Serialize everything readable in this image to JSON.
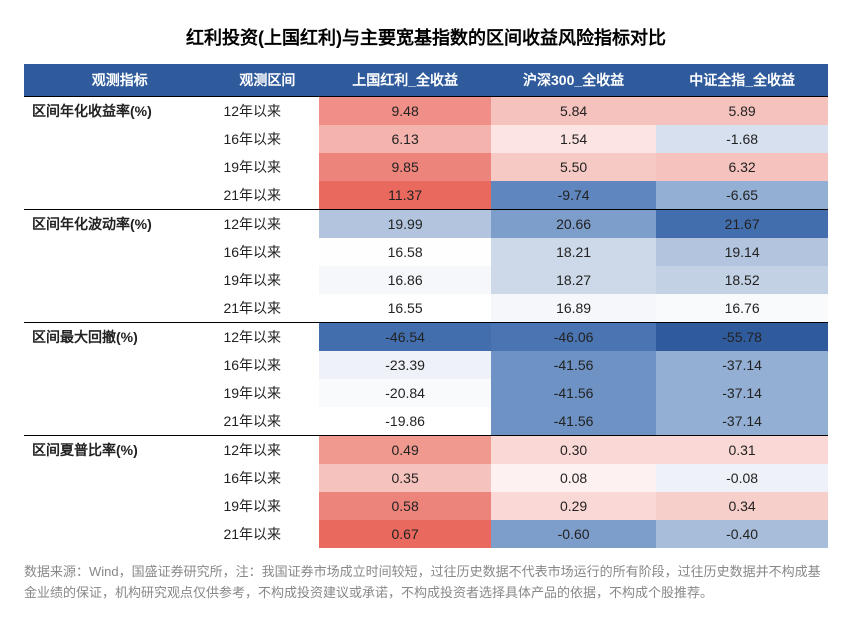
{
  "title": "红利投资(上国红利)与主要宽基指数的区间收益风险指标对比",
  "columns": [
    "观测指标",
    "观测区间",
    "上国红利_全收益",
    "沪深300_全收益",
    "中证全指_全收益"
  ],
  "periods": [
    "12年以来",
    "16年以来",
    "19年以来",
    "21年以来"
  ],
  "metrics": [
    {
      "name": "区间年化收益率(%)",
      "rows": [
        {
          "v": [
            "9.48",
            "5.84",
            "5.89"
          ],
          "bg": [
            "#ef8f87",
            "#f6c2bd",
            "#f6c2bd"
          ]
        },
        {
          "v": [
            "6.13",
            "1.54",
            "-1.68"
          ],
          "bg": [
            "#f4b3ad",
            "#fbe4e2",
            "#d6e0ef"
          ]
        },
        {
          "v": [
            "9.85",
            "5.50",
            "6.32"
          ],
          "bg": [
            "#ed847b",
            "#f7c9c4",
            "#f6c2bd"
          ]
        },
        {
          "v": [
            "11.37",
            "-9.74",
            "-6.65"
          ],
          "bg": [
            "#e9695e",
            "#5f86be",
            "#94afd4"
          ]
        }
      ]
    },
    {
      "name": "区间年化波动率(%)",
      "rows": [
        {
          "v": [
            "19.99",
            "20.66",
            "21.67"
          ],
          "bg": [
            "#b2c4de",
            "#7d9dcb",
            "#426ead"
          ]
        },
        {
          "v": [
            "16.58",
            "18.21",
            "19.14"
          ],
          "bg": [
            "#fefefe",
            "#cdd9e9",
            "#b2c4de"
          ]
        },
        {
          "v": [
            "16.86",
            "18.27",
            "18.52"
          ],
          "bg": [
            "#f5f7fb",
            "#cdd9e9",
            "#c3d1e5"
          ]
        },
        {
          "v": [
            "16.55",
            "16.89",
            "16.76"
          ],
          "bg": [
            "#ffffff",
            "#f5f7fb",
            "#f9fafc"
          ]
        }
      ]
    },
    {
      "name": "区间最大回撤(%)",
      "rows": [
        {
          "v": [
            "-46.54",
            "-46.06",
            "-55.78"
          ],
          "bg": [
            "#426ead",
            "#4a75b2",
            "#2f5b9c"
          ]
        },
        {
          "v": [
            "-23.39",
            "-41.56",
            "-37.14"
          ],
          "bg": [
            "#eef2f8",
            "#6e92c4",
            "#94afd4"
          ]
        },
        {
          "v": [
            "-20.84",
            "-41.56",
            "-37.14"
          ],
          "bg": [
            "#f9fafc",
            "#6e92c4",
            "#94afd4"
          ]
        },
        {
          "v": [
            "-19.86",
            "-41.56",
            "-37.14"
          ],
          "bg": [
            "#ffffff",
            "#6e92c4",
            "#94afd4"
          ]
        }
      ]
    },
    {
      "name": "区间夏普比率(%)",
      "rows": [
        {
          "v": [
            "0.49",
            "0.30",
            "0.31"
          ],
          "bg": [
            "#f0998f",
            "#fad8d5",
            "#fad8d5"
          ]
        },
        {
          "v": [
            "0.35",
            "0.08",
            "-0.08"
          ],
          "bg": [
            "#f6c2bd",
            "#fdf2f1",
            "#eef2f8"
          ]
        },
        {
          "v": [
            "0.58",
            "0.29",
            "0.34"
          ],
          "bg": [
            "#ed847b",
            "#fad8d5",
            "#f7cfca"
          ]
        },
        {
          "v": [
            "0.67",
            "-0.60",
            "-0.40"
          ],
          "bg": [
            "#e9695e",
            "#7d9dcb",
            "#a8bdda"
          ]
        }
      ]
    }
  ],
  "footnote": "数据来源：Wind，国盛证券研究所，注：我国证券市场成立时间较短，过往历史数据不代表市场运行的所有阶段，过往历史数据并不构成基金业绩的保证，机构研究观点仅供参考，不构成投资建议或承诺，不构成投资者选择具体产品的依据，不构成个股推荐。",
  "header_bg": "#2f5b9c",
  "header_color": "#ffffff"
}
